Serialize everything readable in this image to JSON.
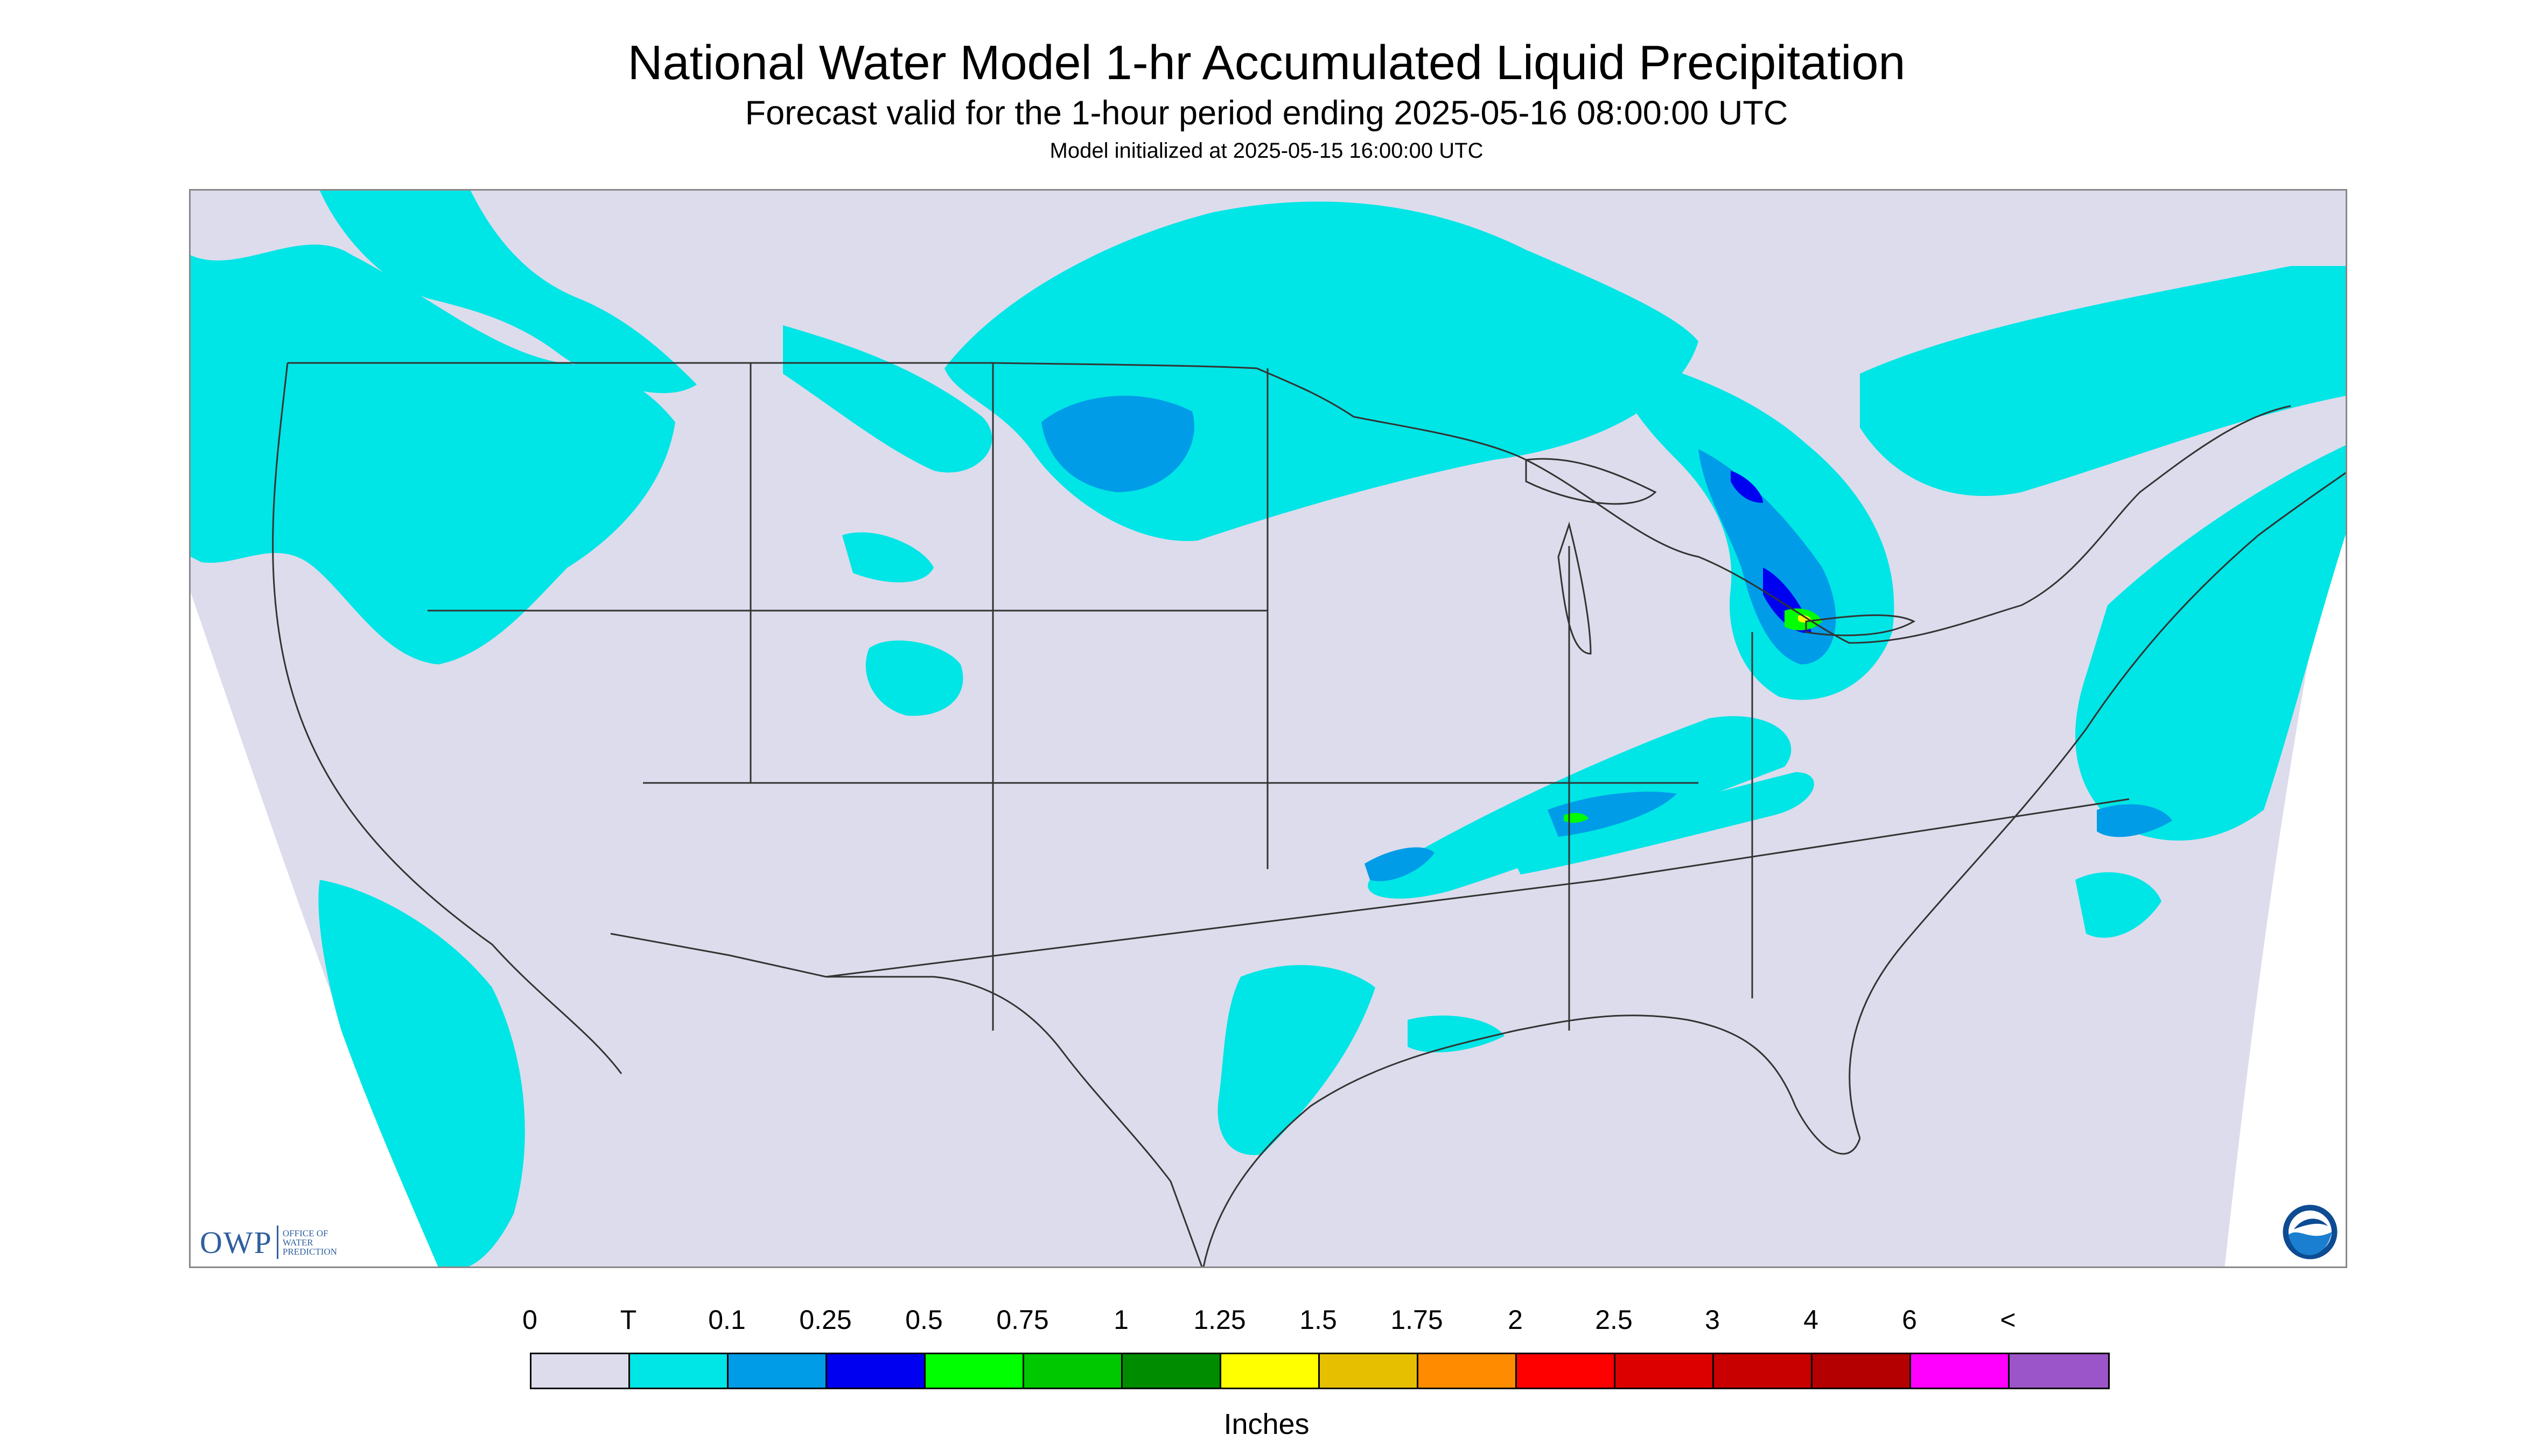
{
  "title": "National Water Model 1-hr Accumulated Liquid Precipitation",
  "subtitle": "Forecast valid for the 1-hour period ending 2025-05-16 08:00:00 UTC",
  "init_line": "Model initialized at 2025-05-15 16:00:00 UTC",
  "colors": {
    "no_precip": "#dcdcec",
    "trace": "#00e5e5",
    "outside": "#ffffff",
    "boundary": "#333333"
  },
  "logos": {
    "owp_mark": "OWP",
    "owp_line1": "OFFICE OF",
    "owp_line2": "WATER",
    "owp_line3": "PREDICTION",
    "noaa_icon": "noaa-logo"
  },
  "legend": {
    "labels": [
      "0",
      "T",
      "0.1",
      "0.25",
      "0.5",
      "0.75",
      "1",
      "1.25",
      "1.5",
      "1.75",
      "2",
      "2.5",
      "3",
      "4",
      "6",
      "<"
    ],
    "colors": [
      "#dcdcec",
      "#00e5e5",
      "#009ce8",
      "#0000f0",
      "#00ff00",
      "#00c800",
      "#008c00",
      "#ffff00",
      "#e6c000",
      "#ff8c00",
      "#ff0000",
      "#dc0000",
      "#c80000",
      "#b40000",
      "#ff00ff",
      "#9b55c8"
    ],
    "units": "Inches"
  }
}
